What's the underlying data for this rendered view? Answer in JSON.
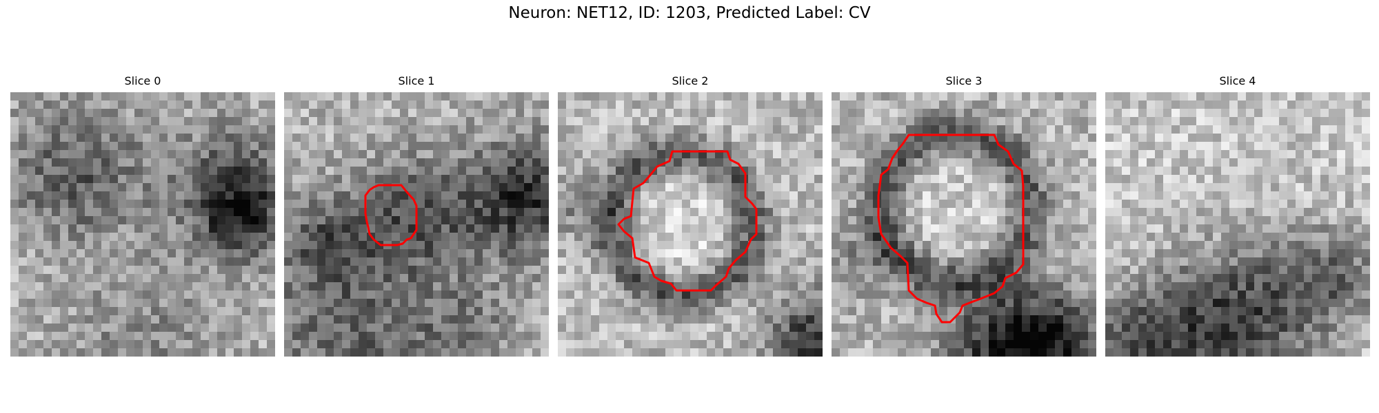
{
  "figure": {
    "title": "Neuron: NET12, ID: 1203, Predicted Label: CV"
  },
  "panels": [
    {
      "title": "Slice 0",
      "contour": "none"
    },
    {
      "title": "Slice 1",
      "contour": "small-blob"
    },
    {
      "title": "Slice 2",
      "contour": "ring"
    },
    {
      "title": "Slice 3",
      "contour": "large-ring"
    },
    {
      "title": "Slice 4",
      "contour": "none"
    }
  ],
  "colors": {
    "contour": "#ff0000",
    "background": "#ffffff"
  }
}
